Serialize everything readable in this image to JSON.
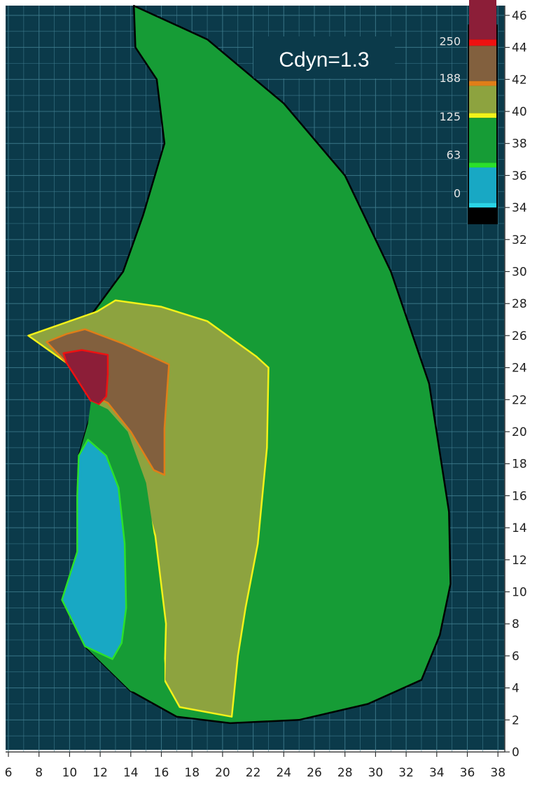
{
  "chart_data": {
    "type": "heatmap",
    "title": "Cdyn=1.3",
    "xlabel": "",
    "ylabel": "",
    "xlim": [
      5.5,
      38.2
    ],
    "ylim": [
      -1.6,
      48
    ],
    "x_ticks": [
      6,
      8,
      10,
      12,
      14,
      16,
      18,
      20,
      22,
      24,
      26,
      28,
      30,
      32,
      34,
      36,
      38
    ],
    "y_ticks": [
      0,
      2,
      4,
      6,
      8,
      10,
      12,
      14,
      16,
      18,
      20,
      22,
      24,
      26,
      28,
      30,
      32,
      34,
      36,
      38,
      40,
      42,
      44,
      46
    ],
    "grid": true,
    "colors": {
      "background": "#0b3a4a",
      "grid": "#3f7d8e",
      "outline": "#000000"
    },
    "legend": {
      "position": "top-right",
      "labels": [
        "250",
        "188",
        "125",
        "63",
        "0"
      ],
      "label_levels": [
        44.4,
        42.1,
        39.7,
        37.3,
        34.9
      ],
      "bands": [
        {
          "from": 34,
          "to": 34.3,
          "color": "#2ad4e6"
        },
        {
          "from": 34.3,
          "to": 36.5,
          "color": "#18a8c4"
        },
        {
          "from": 36.5,
          "to": 36.8,
          "color": "#2be02b"
        },
        {
          "from": 36.8,
          "to": 39.6,
          "color": "#169c36"
        },
        {
          "from": 39.6,
          "to": 39.9,
          "color": "#f2f21a"
        },
        {
          "from": 39.9,
          "to": 41.6,
          "color": "#8da33f"
        },
        {
          "from": 41.6,
          "to": 41.9,
          "color": "#e07e18"
        },
        {
          "from": 41.9,
          "to": 44.1,
          "color": "#82603e"
        },
        {
          "from": 44.1,
          "to": 44.5,
          "color": "#ee1111"
        },
        {
          "from": 44.5,
          "to": 47.2,
          "color": "#8c1e38"
        }
      ]
    },
    "regions": [
      {
        "name": "outer",
        "fill": "#169c36",
        "stroke": "#000000",
        "points": [
          [
            7.3,
            26
          ],
          [
            11.5,
            27.4
          ],
          [
            13.5,
            30
          ],
          [
            14.8,
            33.5
          ],
          [
            16.2,
            38
          ],
          [
            15.7,
            42
          ],
          [
            14.3,
            44
          ],
          [
            14.2,
            46.6
          ],
          [
            19,
            44.5
          ],
          [
            24,
            40.5
          ],
          [
            28,
            36
          ],
          [
            31,
            30
          ],
          [
            33.5,
            23
          ],
          [
            34.8,
            15
          ],
          [
            34.9,
            10.5
          ],
          [
            34.2,
            7.3
          ],
          [
            33,
            4.5
          ],
          [
            29.5,
            3
          ],
          [
            25,
            2
          ],
          [
            20.5,
            1.8
          ],
          [
            17,
            2.2
          ],
          [
            14,
            3.8
          ],
          [
            11,
            6.6
          ],
          [
            9.5,
            9.5
          ],
          [
            10.5,
            12.5
          ],
          [
            10.5,
            16
          ],
          [
            10.6,
            18.5
          ],
          [
            11.2,
            20.5
          ],
          [
            11.7,
            22
          ],
          [
            9.8,
            24.3
          ]
        ]
      },
      {
        "name": "band-40",
        "fill": "#8da33f",
        "stroke": "#f2f21a",
        "points": [
          [
            7.3,
            26
          ],
          [
            11.8,
            27.5
          ],
          [
            13,
            28.2
          ],
          [
            16,
            27.8
          ],
          [
            19,
            26.9
          ],
          [
            22.2,
            24.7
          ],
          [
            23,
            24
          ],
          [
            22.9,
            19
          ],
          [
            22.3,
            13
          ],
          [
            21.5,
            9
          ],
          [
            21,
            6
          ],
          [
            20.6,
            2.2
          ],
          [
            17.2,
            2.8
          ],
          [
            16.2,
            4.5
          ],
          [
            16.3,
            8
          ],
          [
            15.6,
            13.5
          ],
          [
            14.5,
            17.2
          ],
          [
            12.4,
            20.5
          ],
          [
            11.6,
            22.2
          ],
          [
            9.8,
            24.3
          ]
        ]
      },
      {
        "name": "band-42",
        "fill": "#82603e",
        "stroke": "#e07e18",
        "points": [
          [
            8.5,
            25.6
          ],
          [
            9.8,
            26.1
          ],
          [
            11,
            26.4
          ],
          [
            13.5,
            25.5
          ],
          [
            16.5,
            24.2
          ],
          [
            16.2,
            20.2
          ],
          [
            16.2,
            17.3
          ],
          [
            15.5,
            17.6
          ],
          [
            14,
            20
          ],
          [
            12.5,
            21.8
          ],
          [
            11.6,
            22.2
          ],
          [
            9.8,
            24.3
          ]
        ]
      },
      {
        "name": "band-44",
        "fill": "#8c1e38",
        "stroke": "#ee1111",
        "points": [
          [
            9.6,
            24.9
          ],
          [
            10.8,
            25.1
          ],
          [
            12.5,
            24.8
          ],
          [
            12.5,
            23.6
          ],
          [
            12.4,
            22.2
          ],
          [
            11.9,
            21.7
          ],
          [
            11.4,
            21.9
          ],
          [
            9.8,
            24.3
          ]
        ]
      },
      {
        "name": "band-38-left",
        "fill": "#169c36",
        "stroke": "none",
        "points": [
          [
            11.4,
            21.9
          ],
          [
            12.5,
            21.4
          ],
          [
            13.8,
            20
          ],
          [
            15,
            16.8
          ],
          [
            15.6,
            13
          ],
          [
            16,
            9
          ],
          [
            16.2,
            5.5
          ],
          [
            16.2,
            3.4
          ],
          [
            14,
            3.8
          ],
          [
            11,
            6.6
          ],
          [
            9.5,
            9.5
          ],
          [
            10.5,
            12.5
          ],
          [
            10.5,
            16
          ],
          [
            10.6,
            18.5
          ],
          [
            11.2,
            20.5
          ]
        ]
      },
      {
        "name": "band-36",
        "fill": "#18a8c4",
        "stroke": "#2be02b",
        "points": [
          [
            11.2,
            19.5
          ],
          [
            12.4,
            18.5
          ],
          [
            13.2,
            16.5
          ],
          [
            13.6,
            13
          ],
          [
            13.7,
            9
          ],
          [
            13.4,
            6.8
          ],
          [
            12.8,
            5.8
          ],
          [
            11,
            6.6
          ],
          [
            9.5,
            9.5
          ],
          [
            10.5,
            12.5
          ],
          [
            10.5,
            16
          ],
          [
            10.6,
            18.5
          ]
        ]
      }
    ]
  }
}
